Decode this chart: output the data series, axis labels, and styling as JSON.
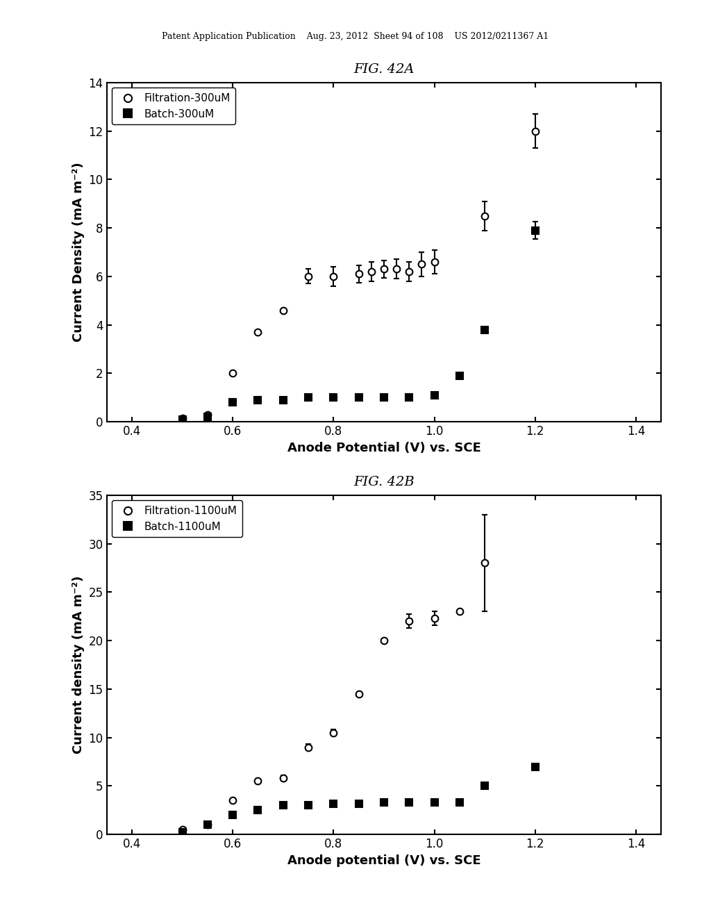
{
  "fig42a": {
    "title": "FIG. 42A",
    "xlabel": "Anode Potential (V) vs. SCE",
    "ylabel": "Current Density (mA m⁻²)",
    "xlim": [
      0.35,
      1.45
    ],
    "ylim": [
      0,
      14
    ],
    "xticks": [
      0.4,
      0.6,
      0.8,
      1.0,
      1.2,
      1.4
    ],
    "yticks": [
      0,
      2,
      4,
      6,
      8,
      10,
      12,
      14
    ],
    "filtration_x": [
      0.5,
      0.55,
      0.6,
      0.65,
      0.7,
      0.75,
      0.8,
      0.85,
      0.875,
      0.9,
      0.925,
      0.95,
      0.975,
      1.0,
      1.1,
      1.2
    ],
    "filtration_y": [
      0.15,
      0.3,
      2.0,
      3.7,
      4.6,
      6.0,
      6.0,
      6.1,
      6.2,
      6.3,
      6.3,
      6.2,
      6.5,
      6.6,
      8.5,
      12.0
    ],
    "filtration_yerr": [
      0.0,
      0.0,
      0.0,
      0.0,
      0.0,
      0.3,
      0.4,
      0.35,
      0.4,
      0.35,
      0.4,
      0.4,
      0.5,
      0.5,
      0.6,
      0.7
    ],
    "batch_x": [
      0.5,
      0.55,
      0.6,
      0.65,
      0.7,
      0.75,
      0.8,
      0.85,
      0.9,
      0.95,
      1.0,
      1.05,
      1.1,
      1.2,
      1.3
    ],
    "batch_y": [
      0.1,
      0.2,
      0.8,
      0.9,
      0.9,
      1.0,
      1.0,
      1.0,
      1.0,
      1.0,
      1.1,
      1.9,
      3.8,
      7.9,
      0.0
    ],
    "batch_yerr": [
      0.0,
      0.0,
      0.0,
      0.0,
      0.0,
      0.0,
      0.0,
      0.0,
      0.0,
      0.0,
      0.0,
      0.0,
      0.0,
      0.35,
      0.0
    ],
    "legend1": "Filtration-300uM",
    "legend2": "Batch-300uM"
  },
  "fig42b": {
    "title": "FIG. 42B",
    "xlabel": "Anode potential (V) vs. SCE",
    "ylabel": "Current density (mA m⁻²)",
    "xlim": [
      0.35,
      1.45
    ],
    "ylim": [
      0,
      35
    ],
    "xticks": [
      0.4,
      0.6,
      0.8,
      1.0,
      1.2,
      1.4
    ],
    "yticks": [
      0,
      5,
      10,
      15,
      20,
      25,
      30,
      35
    ],
    "filtration_x": [
      0.5,
      0.55,
      0.6,
      0.65,
      0.7,
      0.75,
      0.8,
      0.85,
      0.9,
      0.95,
      1.0,
      1.05,
      1.1,
      1.2
    ],
    "filtration_y": [
      0.5,
      1.0,
      3.5,
      5.5,
      5.8,
      9.0,
      10.5,
      14.5,
      20.0,
      22.0,
      22.3,
      23.0,
      28.0,
      0.0
    ],
    "filtration_yerr": [
      0.0,
      0.0,
      0.0,
      0.0,
      0.3,
      0.3,
      0.3,
      0.0,
      0.0,
      0.7,
      0.7,
      0.0,
      5.0,
      0.0
    ],
    "batch_x": [
      0.5,
      0.55,
      0.6,
      0.65,
      0.7,
      0.75,
      0.8,
      0.85,
      0.9,
      0.95,
      1.0,
      1.05,
      1.1,
      1.2,
      1.3
    ],
    "batch_y": [
      0.2,
      1.0,
      2.0,
      2.5,
      3.0,
      3.0,
      3.2,
      3.2,
      3.3,
      3.3,
      3.3,
      3.3,
      5.0,
      7.0,
      0.0
    ],
    "batch_yerr": [
      0.0,
      0.0,
      0.0,
      0.0,
      0.0,
      0.0,
      0.0,
      0.0,
      0.0,
      0.0,
      0.0,
      0.0,
      0.0,
      0.0,
      0.0
    ],
    "legend1": "Filtration-1100uM",
    "legend2": "Batch-1100uM"
  },
  "header_text": "Patent Application Publication    Aug. 23, 2012  Sheet 94 of 108    US 2012/0211367 A1",
  "background_color": "#ffffff",
  "text_color": "#000000"
}
